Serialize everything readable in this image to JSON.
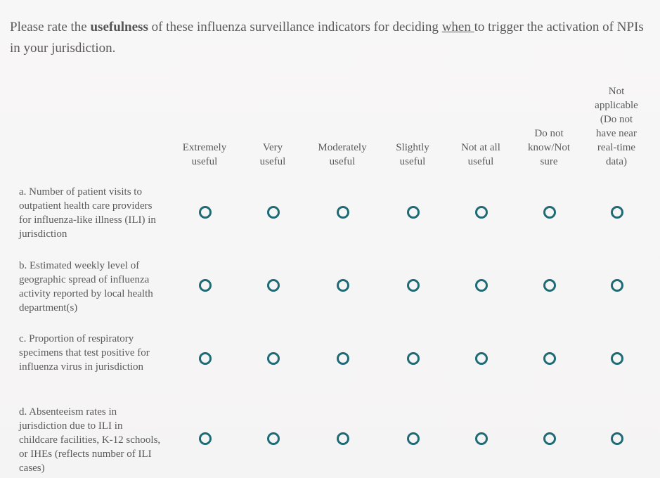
{
  "question": {
    "prefix": "Please rate the ",
    "bold": "usefulness",
    "middle": " of these influenza surveillance indicators for deciding ",
    "underline": "when ",
    "suffix": "to trigger the activation of NPIs in your jurisdiction."
  },
  "columns": [
    {
      "label": "Extremely useful"
    },
    {
      "label": "Very useful"
    },
    {
      "label": "Moderately useful"
    },
    {
      "label": "Slightly useful"
    },
    {
      "label": "Not at all useful"
    },
    {
      "label": "Do not know/Not sure"
    },
    {
      "label": "Not applicable (Do not have near real-time data)"
    }
  ],
  "rows": [
    {
      "label": "a. Number of patient visits to outpatient health care providers for influenza-like illness (ILI) in jurisdiction"
    },
    {
      "label": "b. Estimated weekly level of geographic spread of influenza activity reported by local health department(s)"
    },
    {
      "label": "c. Proportion of respiratory specimens that test positive for influenza virus in jurisdiction"
    },
    {
      "label": "d. Absenteeism rates in jurisdiction due to ILI in childcare facilities, K-12 schools, or IHEs (reflects number of ILI cases)"
    }
  ]
}
